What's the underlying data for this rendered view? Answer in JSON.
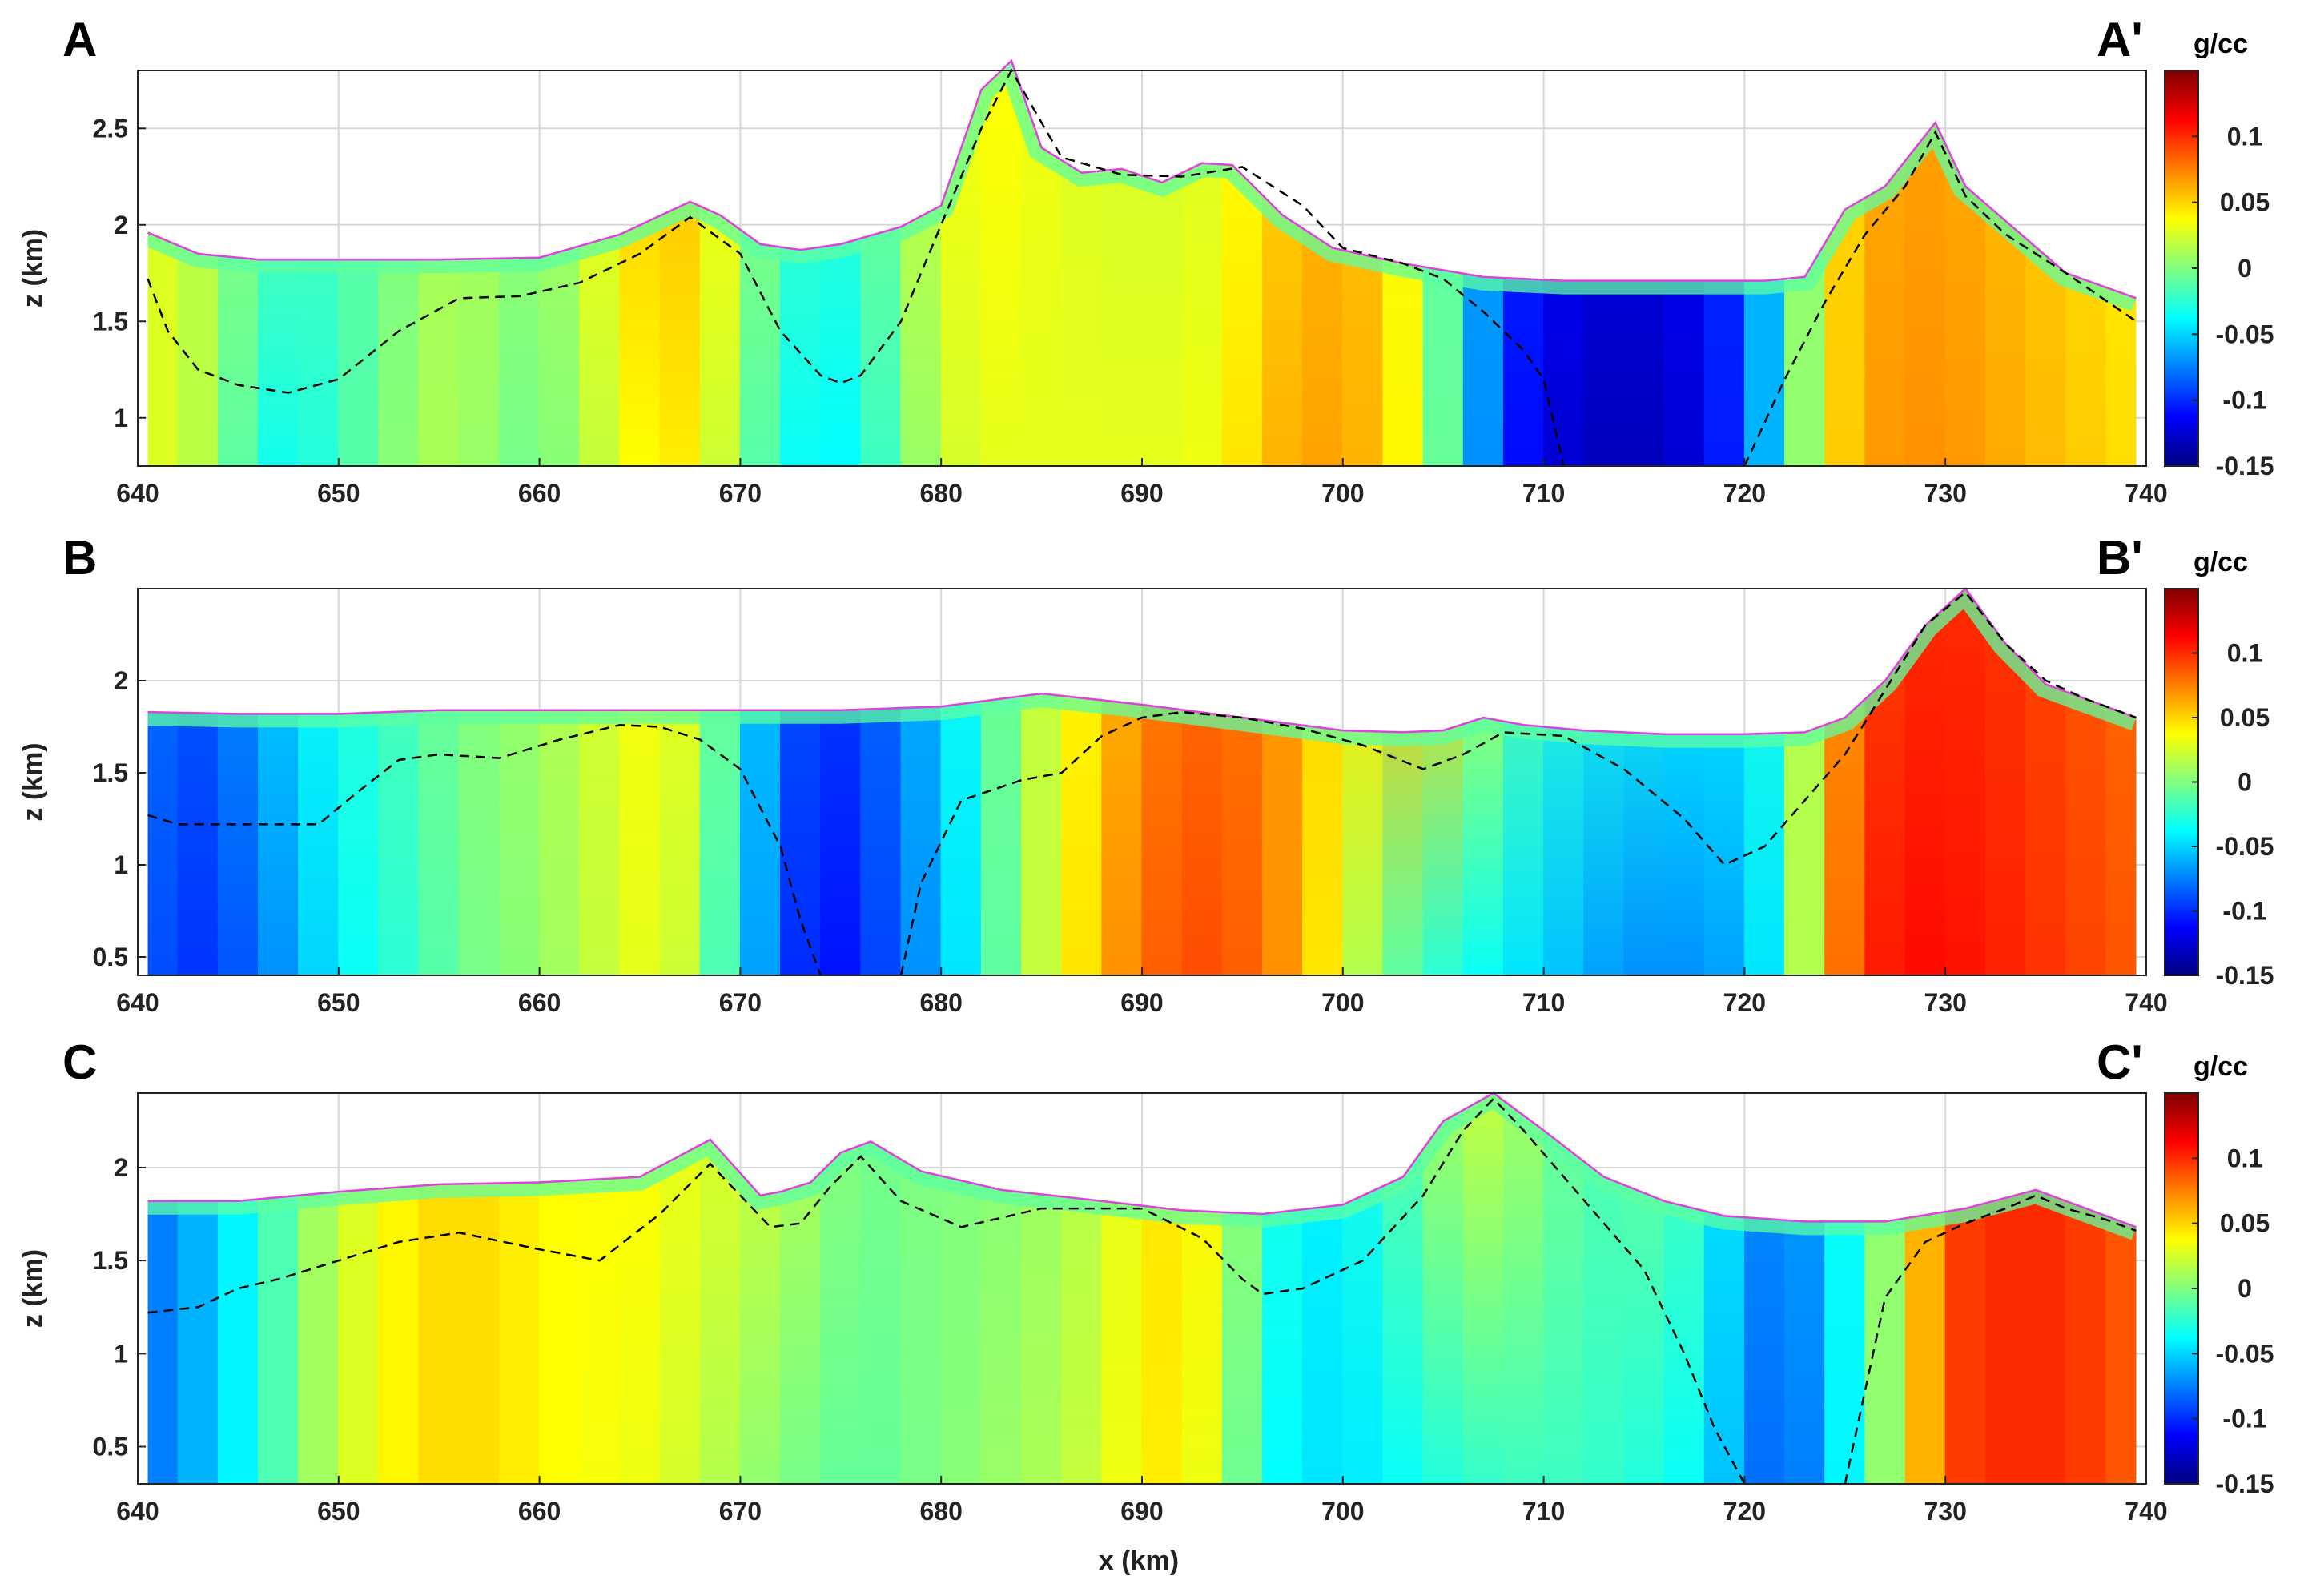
{
  "figure": {
    "xlabel": "x (km)",
    "ylabel": "z (km)",
    "colorbar_unit": "g/cc"
  },
  "colors": {
    "colormap": [
      "#000080",
      "#0000ff",
      "#0080ff",
      "#00ffff",
      "#80ff80",
      "#ffff00",
      "#ff8000",
      "#ff0000",
      "#800000"
    ],
    "surface_line": "#e040e0",
    "dashed_line": "#000000",
    "grid": "#d8d8d8"
  },
  "chart_data": [
    {
      "type": "heatmap",
      "label_left": "A",
      "label_right": "A'",
      "xlim": [
        640,
        740
      ],
      "ylim": [
        0.75,
        2.8
      ],
      "xticks": [
        "640",
        "650",
        "660",
        "670",
        "680",
        "690",
        "700",
        "710",
        "720",
        "730",
        "740"
      ],
      "yticks": [
        "1",
        "1.5",
        "2",
        "2.5"
      ],
      "ytick_values": [
        1,
        1.5,
        2,
        2.5
      ],
      "clim": [
        -0.15,
        0.15
      ],
      "colorbar_ticks": [
        "0.1",
        "0.05",
        "0",
        "-0.05",
        "-0.1",
        "-0.15"
      ],
      "colorbar_tick_values": [
        0.1,
        0.05,
        0,
        -0.05,
        -0.1,
        -0.15
      ],
      "topography": {
        "x": [
          640.5,
          643,
          646,
          650,
          655,
          660,
          664,
          667.5,
          669,
          671,
          673,
          675,
          678,
          680,
          681,
          682,
          683.5,
          685,
          687,
          689,
          691,
          693,
          694.5,
          697,
          699.5,
          703,
          707,
          711,
          716,
          721,
          723,
          725,
          727,
          729.5,
          731,
          733,
          736,
          739.5
        ],
        "z": [
          1.96,
          1.85,
          1.82,
          1.82,
          1.82,
          1.83,
          1.95,
          2.12,
          2.05,
          1.9,
          1.87,
          1.9,
          1.99,
          2.1,
          2.4,
          2.7,
          2.85,
          2.4,
          2.27,
          2.29,
          2.22,
          2.32,
          2.31,
          2.05,
          1.88,
          1.8,
          1.73,
          1.71,
          1.71,
          1.71,
          1.73,
          2.08,
          2.2,
          2.53,
          2.2,
          2.02,
          1.75,
          1.62
        ]
      },
      "dashed_contour": {
        "x": [
          640.5,
          641.5,
          643,
          645,
          647.5,
          650,
          653,
          656,
          659,
          662,
          665,
          667.5,
          670,
          672,
          674,
          675,
          676,
          678,
          680,
          682,
          683.5,
          686,
          689,
          692,
          695,
          698,
          700,
          703,
          705,
          707,
          709,
          710,
          711
        ],
        "z": [
          1.72,
          1.45,
          1.25,
          1.17,
          1.13,
          1.2,
          1.45,
          1.62,
          1.63,
          1.7,
          1.85,
          2.04,
          1.85,
          1.45,
          1.22,
          1.18,
          1.22,
          1.5,
          2.0,
          2.5,
          2.8,
          2.35,
          2.26,
          2.25,
          2.3,
          2.1,
          1.88,
          1.8,
          1.72,
          1.55,
          1.35,
          1.2,
          0.75
        ]
      },
      "dashed_contour_2": {
        "x": [
          720,
          722,
          724,
          726,
          728,
          729.5,
          731,
          733,
          736,
          739.5
        ],
        "z": [
          0.75,
          1.2,
          1.6,
          1.95,
          2.2,
          2.48,
          2.15,
          1.95,
          1.75,
          1.5
        ]
      },
      "density_columns": {
        "x": [
          640.5,
          642,
          644,
          646,
          648,
          650,
          652,
          654,
          656,
          658,
          660,
          662,
          664,
          666,
          668,
          670,
          672,
          674,
          676,
          678,
          680,
          682,
          684,
          686,
          688,
          690,
          692,
          694,
          696,
          698,
          700,
          702,
          704,
          706,
          708,
          710,
          712,
          714,
          716,
          718,
          720,
          722,
          724,
          726,
          728,
          730,
          732,
          734,
          736,
          738,
          739.5
        ],
        "top": [
          0.03,
          0.025,
          0.01,
          0.0,
          -0.01,
          -0.015,
          -0.01,
          0.005,
          0.015,
          0.01,
          0.005,
          0.02,
          0.05,
          0.06,
          0.055,
          0.02,
          -0.01,
          -0.025,
          -0.015,
          0.01,
          0.03,
          0.04,
          0.035,
          0.03,
          0.025,
          0.025,
          0.025,
          0.03,
          0.045,
          0.055,
          0.06,
          0.05,
          0.02,
          -0.04,
          -0.09,
          -0.11,
          -0.115,
          -0.115,
          -0.115,
          -0.11,
          -0.09,
          -0.03,
          0.04,
          0.06,
          0.065,
          0.065,
          0.06,
          0.055,
          0.05,
          0.045,
          0.04
        ],
        "bottom": [
          0.03,
          0.025,
          0.01,
          -0.03,
          -0.035,
          -0.02,
          -0.005,
          0.01,
          0.015,
          0.0,
          -0.005,
          0.01,
          0.03,
          0.045,
          0.04,
          0.005,
          -0.03,
          -0.04,
          -0.035,
          -0.005,
          0.02,
          0.03,
          0.03,
          0.03,
          0.03,
          0.03,
          0.03,
          0.035,
          0.055,
          0.065,
          0.065,
          0.055,
          0.025,
          -0.04,
          -0.1,
          -0.12,
          -0.13,
          -0.135,
          -0.13,
          -0.12,
          -0.09,
          -0.03,
          0.04,
          0.065,
          0.07,
          0.07,
          0.065,
          0.06,
          0.055,
          0.05,
          0.045
        ]
      }
    },
    {
      "type": "heatmap",
      "label_left": "B",
      "label_right": "B'",
      "xlim": [
        640,
        740
      ],
      "ylim": [
        0.4,
        2.5
      ],
      "xticks": [
        "640",
        "650",
        "660",
        "670",
        "680",
        "690",
        "700",
        "710",
        "720",
        "730",
        "740"
      ],
      "yticks": [
        "0.5",
        "1",
        "1.5",
        "2"
      ],
      "ytick_values": [
        0.5,
        1,
        1.5,
        2
      ],
      "clim": [
        -0.15,
        0.15
      ],
      "colorbar_ticks": [
        "0.1",
        "0.05",
        "0",
        "-0.05",
        "-0.1",
        "-0.15"
      ],
      "colorbar_tick_values": [
        0.1,
        0.05,
        0,
        -0.05,
        -0.1,
        -0.15
      ],
      "topography": {
        "x": [
          640.5,
          645,
          650,
          655,
          660,
          665,
          670,
          675,
          680,
          685,
          690,
          695,
          700,
          703,
          705,
          707,
          709,
          712,
          716,
          720,
          723,
          725,
          727,
          729,
          731,
          733,
          735,
          737,
          739.5
        ],
        "z": [
          1.83,
          1.82,
          1.82,
          1.84,
          1.84,
          1.84,
          1.84,
          1.84,
          1.86,
          1.93,
          1.87,
          1.8,
          1.73,
          1.72,
          1.73,
          1.8,
          1.76,
          1.73,
          1.71,
          1.71,
          1.72,
          1.8,
          2.0,
          2.3,
          2.5,
          2.2,
          1.98,
          1.9,
          1.8
        ]
      },
      "dashed_contour": {
        "x": [
          640.5,
          642,
          645,
          649,
          651,
          653,
          655,
          658,
          661,
          664,
          666,
          668,
          670,
          672,
          673,
          674
        ],
        "z": [
          1.27,
          1.22,
          1.22,
          1.22,
          1.4,
          1.57,
          1.6,
          1.58,
          1.68,
          1.76,
          1.75,
          1.68,
          1.52,
          1.1,
          0.7,
          0.4
        ]
      },
      "dashed_contour_2": {
        "x": [
          678,
          679,
          681,
          684,
          686,
          688,
          690,
          692,
          695,
          698,
          701,
          704,
          706,
          708,
          711,
          714,
          717,
          719,
          721,
          723,
          725,
          727,
          729,
          731,
          733,
          735,
          737,
          739.5
        ],
        "z": [
          0.4,
          0.9,
          1.35,
          1.46,
          1.5,
          1.7,
          1.8,
          1.83,
          1.8,
          1.74,
          1.65,
          1.52,
          1.6,
          1.72,
          1.7,
          1.52,
          1.25,
          1.0,
          1.1,
          1.35,
          1.6,
          1.95,
          2.3,
          2.48,
          2.2,
          2.0,
          1.9,
          1.8
        ]
      },
      "density_columns": {
        "x": [
          640.5,
          642,
          644,
          646,
          648,
          650,
          652,
          654,
          656,
          658,
          660,
          662,
          664,
          666,
          668,
          670,
          672,
          674,
          676,
          678,
          680,
          682,
          684,
          686,
          688,
          690,
          692,
          694,
          696,
          698,
          700,
          702,
          704,
          706,
          708,
          710,
          712,
          714,
          716,
          718,
          720,
          722,
          724,
          726,
          728,
          730,
          732,
          734,
          736,
          738,
          739.5
        ],
        "top": [
          -0.07,
          -0.09,
          -0.08,
          -0.06,
          -0.04,
          -0.03,
          -0.02,
          -0.01,
          0.0,
          0.005,
          0.01,
          0.02,
          0.03,
          0.04,
          0.02,
          -0.03,
          -0.08,
          -0.095,
          -0.09,
          -0.07,
          -0.05,
          -0.02,
          0.01,
          0.03,
          0.05,
          0.07,
          0.08,
          0.08,
          0.075,
          0.06,
          0.04,
          0.05,
          0.06,
          0.04,
          0.0,
          -0.02,
          -0.03,
          -0.03,
          -0.035,
          -0.04,
          -0.04,
          -0.02,
          0.05,
          0.09,
          0.1,
          0.1,
          0.1,
          0.095,
          0.09,
          0.085,
          0.08
        ],
        "bottom": [
          -0.08,
          -0.1,
          -0.095,
          -0.08,
          -0.06,
          -0.04,
          -0.03,
          -0.02,
          -0.005,
          0.0,
          0.005,
          0.015,
          0.025,
          0.035,
          0.01,
          -0.04,
          -0.09,
          -0.11,
          -0.105,
          -0.08,
          -0.06,
          -0.03,
          0.01,
          0.03,
          0.06,
          0.08,
          0.09,
          0.09,
          0.08,
          0.06,
          0.03,
          0.0,
          -0.02,
          -0.03,
          -0.04,
          -0.05,
          -0.06,
          -0.07,
          -0.07,
          -0.07,
          -0.06,
          -0.03,
          0.06,
          0.1,
          0.11,
          0.11,
          0.105,
          0.1,
          0.095,
          0.09,
          0.085
        ]
      }
    },
    {
      "type": "heatmap",
      "label_left": "C",
      "label_right": "C'",
      "xlim": [
        640,
        740
      ],
      "ylim": [
        0.3,
        2.4
      ],
      "xticks": [
        "640",
        "650",
        "660",
        "670",
        "680",
        "690",
        "700",
        "710",
        "720",
        "730",
        "740"
      ],
      "yticks": [
        "0.5",
        "1",
        "1.5",
        "2"
      ],
      "ytick_values": [
        0.5,
        1,
        1.5,
        2
      ],
      "clim": [
        -0.15,
        0.15
      ],
      "colorbar_ticks": [
        "0.1",
        "0.05",
        "0",
        "-0.05",
        "-0.1",
        "-0.15"
      ],
      "colorbar_tick_values": [
        0.1,
        0.05,
        0,
        -0.05,
        -0.1,
        -0.15
      ],
      "topography": {
        "x": [
          640.5,
          645,
          650,
          655,
          660,
          665,
          668.5,
          670,
          671,
          672,
          673.5,
          675,
          676.5,
          679,
          683,
          688,
          692,
          696,
          700,
          703,
          705,
          707.5,
          710,
          713,
          716,
          719,
          723,
          727,
          731,
          734.5,
          737,
          739.5
        ],
        "z": [
          1.82,
          1.82,
          1.87,
          1.91,
          1.92,
          1.95,
          2.15,
          1.97,
          1.85,
          1.87,
          1.92,
          2.08,
          2.14,
          1.98,
          1.88,
          1.82,
          1.77,
          1.75,
          1.8,
          1.95,
          2.25,
          2.4,
          2.2,
          1.95,
          1.82,
          1.74,
          1.71,
          1.71,
          1.78,
          1.88,
          1.78,
          1.68
        ]
      },
      "dashed_contour": {
        "x": [
          640.5,
          643,
          645,
          647,
          650,
          653,
          656,
          660,
          663,
          666,
          668.5,
          670,
          671.5,
          673,
          674.5,
          676,
          678,
          681,
          685,
          690,
          693,
          695,
          696,
          698,
          701,
          704,
          706,
          707.5,
          709,
          711,
          713,
          715,
          717,
          718.5,
          720
        ],
        "z": [
          1.22,
          1.25,
          1.35,
          1.4,
          1.5,
          1.6,
          1.65,
          1.56,
          1.5,
          1.75,
          2.02,
          1.85,
          1.68,
          1.7,
          1.9,
          2.06,
          1.82,
          1.68,
          1.78,
          1.78,
          1.62,
          1.4,
          1.32,
          1.35,
          1.5,
          1.85,
          2.2,
          2.37,
          2.2,
          1.95,
          1.7,
          1.45,
          1.0,
          0.6,
          0.3
        ]
      },
      "dashed_contour_2": {
        "x": [
          725,
          726,
          727,
          729,
          731,
          733,
          734.5,
          736,
          738,
          739.5
        ],
        "z": [
          0.3,
          0.8,
          1.3,
          1.6,
          1.7,
          1.78,
          1.85,
          1.78,
          1.72,
          1.66
        ]
      },
      "density_columns": {
        "x": [
          640.5,
          642,
          644,
          646,
          648,
          650,
          652,
          654,
          656,
          658,
          660,
          662,
          664,
          666,
          668,
          670,
          672,
          674,
          676,
          678,
          680,
          682,
          684,
          686,
          688,
          690,
          692,
          694,
          696,
          698,
          700,
          702,
          704,
          706,
          708,
          710,
          712,
          714,
          716,
          718,
          720,
          722,
          724,
          726,
          728,
          730,
          732,
          734,
          736,
          738,
          739.5
        ],
        "top": [
          -0.08,
          -0.07,
          -0.05,
          -0.03,
          0.0,
          0.02,
          0.035,
          0.045,
          0.05,
          0.045,
          0.04,
          0.035,
          0.04,
          0.035,
          0.03,
          0.025,
          0.02,
          0.01,
          -0.005,
          0.0,
          0.0,
          0.0,
          0.005,
          0.01,
          0.02,
          0.04,
          0.05,
          0.03,
          -0.02,
          -0.04,
          -0.04,
          -0.02,
          0.0,
          0.02,
          0.02,
          0.0,
          -0.01,
          -0.015,
          0.0,
          -0.03,
          -0.06,
          -0.08,
          -0.05,
          -0.02,
          0.03,
          0.09,
          0.1,
          0.1,
          0.1,
          0.09,
          0.085
        ],
        "bottom": [
          -0.08,
          -0.07,
          -0.05,
          -0.03,
          0.0,
          0.02,
          0.035,
          0.045,
          0.05,
          0.045,
          0.04,
          0.035,
          0.035,
          0.03,
          0.02,
          0.01,
          0.0,
          -0.005,
          -0.01,
          -0.005,
          0.0,
          0.005,
          0.01,
          0.015,
          0.025,
          0.04,
          0.045,
          0.02,
          -0.03,
          -0.045,
          -0.045,
          -0.04,
          -0.03,
          -0.025,
          -0.02,
          -0.02,
          -0.02,
          -0.025,
          -0.03,
          -0.04,
          -0.07,
          -0.09,
          -0.06,
          -0.02,
          0.03,
          0.09,
          0.1,
          0.1,
          0.1,
          0.09,
          0.085
        ]
      }
    }
  ]
}
